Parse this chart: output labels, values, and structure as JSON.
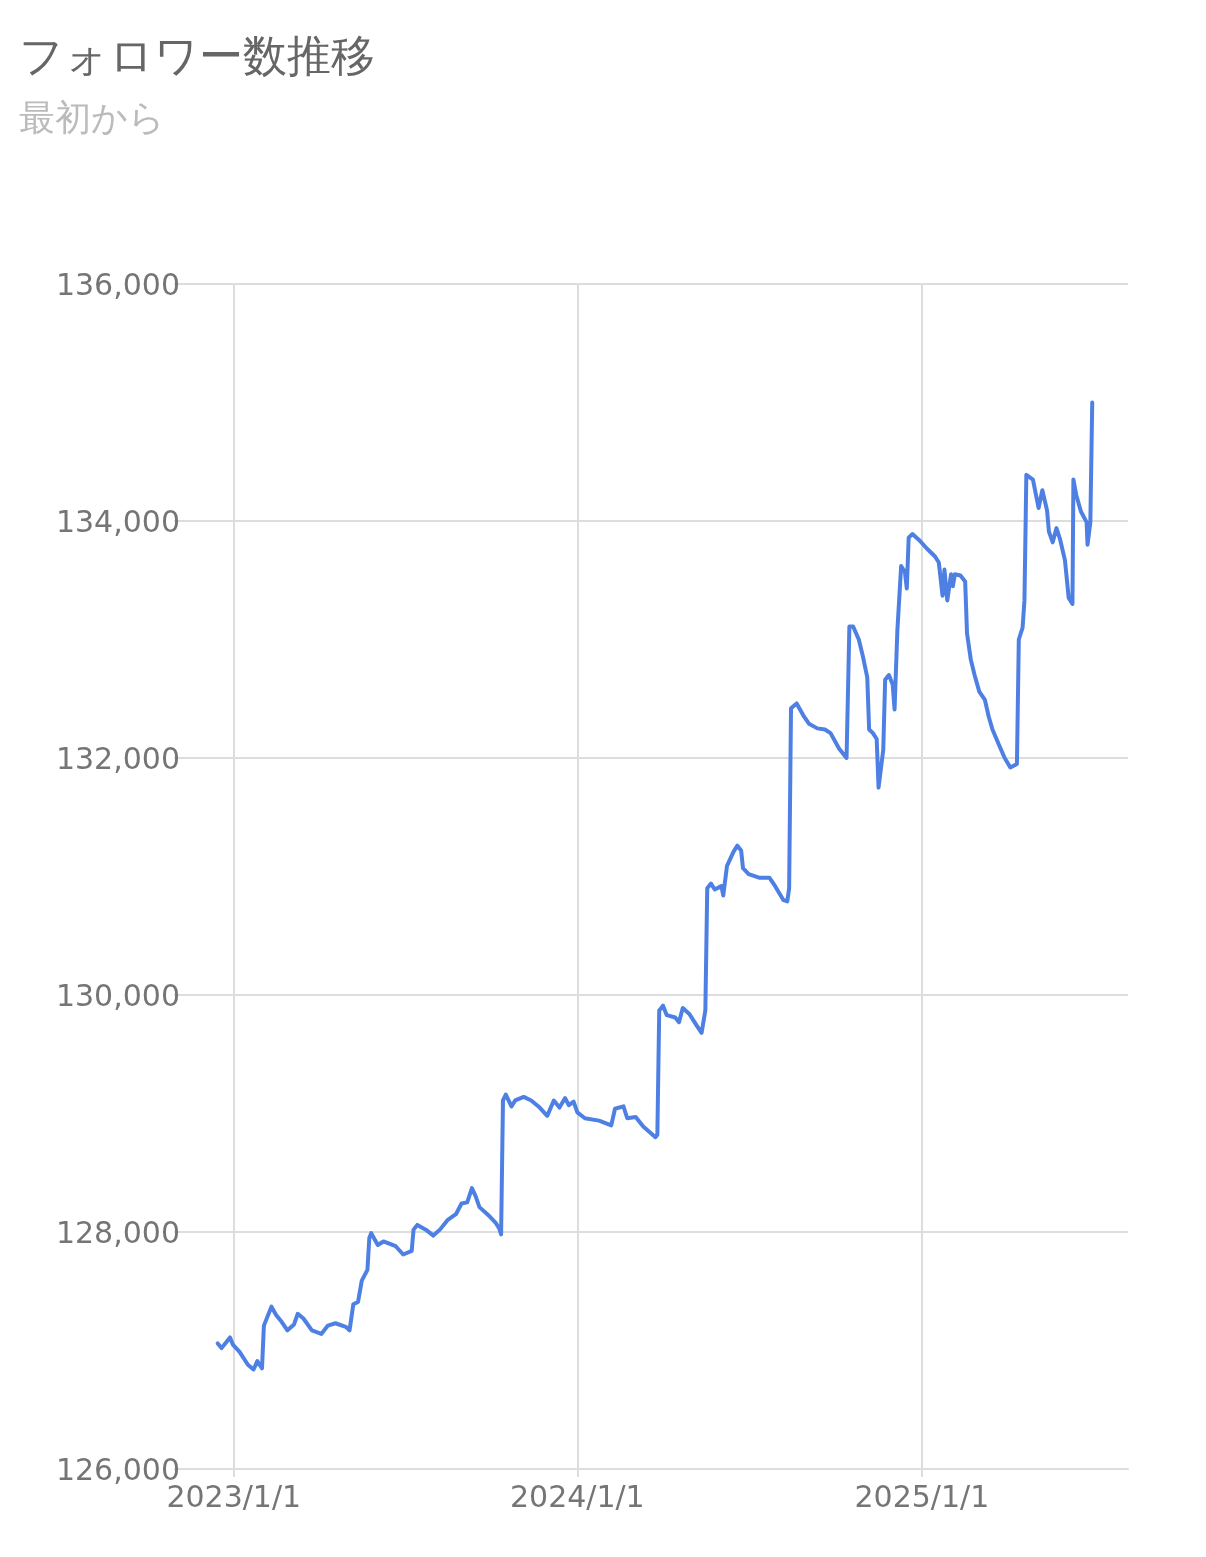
{
  "chart_data": {
    "type": "line",
    "title": "フォロワー数推移",
    "subtitle": "最初から",
    "x": [
      "2022-12-15",
      "2022-12-19",
      "2022-12-24",
      "2022-12-28",
      "2022-12-31",
      "2023-01-07",
      "2023-01-16",
      "2023-01-22",
      "2023-01-26",
      "2023-01-31",
      "2023-02-02",
      "2023-02-06",
      "2023-02-10",
      "2023-02-15",
      "2023-02-21",
      "2023-02-27",
      "2023-03-06",
      "2023-03-10",
      "2023-03-16",
      "2023-03-25",
      "2023-04-04",
      "2023-04-11",
      "2023-04-19",
      "2023-04-30",
      "2023-05-04",
      "2023-05-08",
      "2023-05-13",
      "2023-05-17",
      "2023-05-23",
      "2023-05-25",
      "2023-05-27",
      "2023-06-03",
      "2023-06-09",
      "2023-06-22",
      "2023-06-30",
      "2023-07-09",
      "2023-07-11",
      "2023-07-15",
      "2023-07-24",
      "2023-08-01",
      "2023-08-08",
      "2023-08-16",
      "2023-08-25",
      "2023-08-31",
      "2023-09-06",
      "2023-09-11",
      "2023-09-15",
      "2023-09-19",
      "2023-09-30",
      "2023-10-06",
      "2023-10-10",
      "2023-10-12",
      "2023-10-14",
      "2023-10-17",
      "2023-10-23",
      "2023-10-27",
      "2023-11-05",
      "2023-11-13",
      "2023-11-22",
      "2023-11-30",
      "2023-12-07",
      "2023-12-13",
      "2023-12-19",
      "2023-12-23",
      "2023-12-28",
      "2024-01-01",
      "2024-01-09",
      "2024-01-24",
      "2024-02-06",
      "2024-02-10",
      "2024-02-19",
      "2024-02-23",
      "2024-03-03",
      "2024-03-11",
      "2024-03-24",
      "2024-03-26",
      "2024-03-28",
      "2024-04-01",
      "2024-04-05",
      "2024-04-14",
      "2024-04-18",
      "2024-04-22",
      "2024-04-29",
      "2024-05-07",
      "2024-05-12",
      "2024-05-16",
      "2024-05-18",
      "2024-05-22",
      "2024-05-26",
      "2024-06-02",
      "2024-06-04",
      "2024-06-08",
      "2024-06-15",
      "2024-06-19",
      "2024-06-23",
      "2024-06-25",
      "2024-07-01",
      "2024-07-12",
      "2024-07-23",
      "2024-07-29",
      "2024-08-07",
      "2024-08-11",
      "2024-08-13",
      "2024-08-15",
      "2024-08-21",
      "2024-08-28",
      "2024-09-03",
      "2024-09-12",
      "2024-09-20",
      "2024-09-26",
      "2024-10-05",
      "2024-10-13",
      "2024-10-16",
      "2024-10-20",
      "2024-10-26",
      "2024-10-30",
      "2024-11-04",
      "2024-11-06",
      "2024-11-10",
      "2024-11-14",
      "2024-11-16",
      "2024-11-21",
      "2024-11-23",
      "2024-11-27",
      "2024-12-01",
      "2024-12-03",
      "2024-12-06",
      "2024-12-10",
      "2024-12-14",
      "2024-12-16",
      "2024-12-18",
      "2024-12-22",
      "2024-12-29",
      "2025-01-06",
      "2025-01-15",
      "2025-01-19",
      "2025-01-23",
      "2025-01-25",
      "2025-01-28",
      "2025-02-01",
      "2025-02-03",
      "2025-02-05",
      "2025-02-11",
      "2025-02-16",
      "2025-02-18",
      "2025-02-22",
      "2025-02-26",
      "2025-03-03",
      "2025-03-09",
      "2025-03-13",
      "2025-03-17",
      "2025-03-24",
      "2025-03-30",
      "2025-04-05",
      "2025-04-12",
      "2025-04-14",
      "2025-04-18",
      "2025-04-20",
      "2025-04-22",
      "2025-04-29",
      "2025-05-05",
      "2025-05-09",
      "2025-05-14",
      "2025-05-16",
      "2025-05-20",
      "2025-05-24",
      "2025-05-28",
      "2025-06-02",
      "2025-06-06",
      "2025-06-10",
      "2025-06-11",
      "2025-06-14",
      "2025-06-19",
      "2025-06-25",
      "2025-06-26",
      "2025-06-29",
      "2025-07-01"
    ],
    "series": [
      {
        "color": "#4e80e4",
        "values": [
          127060,
          127020,
          127070,
          127110,
          127050,
          126990,
          126880,
          126840,
          126910,
          126850,
          127210,
          127290,
          127370,
          127300,
          127240,
          127170,
          127220,
          127310,
          127270,
          127170,
          127140,
          127210,
          127230,
          127200,
          127170,
          127390,
          127410,
          127590,
          127680,
          127950,
          127990,
          127890,
          127920,
          127880,
          127810,
          127840,
          128020,
          128060,
          128020,
          127970,
          128020,
          128100,
          128150,
          128240,
          128250,
          128370,
          128300,
          128210,
          128130,
          128080,
          128030,
          127980,
          129110,
          129160,
          129060,
          129110,
          129140,
          129110,
          129050,
          128980,
          129110,
          129050,
          129130,
          129070,
          129100,
          129010,
          128960,
          128940,
          128900,
          129040,
          129060,
          128960,
          128970,
          128890,
          128800,
          128820,
          129870,
          129910,
          129830,
          129810,
          129770,
          129890,
          129840,
          129740,
          129680,
          129870,
          130900,
          130940,
          130890,
          130920,
          130840,
          131090,
          131210,
          131260,
          131220,
          131070,
          131020,
          130990,
          130990,
          130920,
          130800,
          130790,
          130900,
          132420,
          132460,
          132360,
          132290,
          132250,
          132240,
          132210,
          132080,
          132000,
          133110,
          133110,
          133000,
          132870,
          132680,
          132240,
          132210,
          132160,
          131750,
          132070,
          132660,
          132700,
          132620,
          132410,
          133080,
          133620,
          133570,
          133430,
          133860,
          133890,
          133840,
          133770,
          133700,
          133650,
          133370,
          133590,
          133330,
          133550,
          133450,
          133550,
          133540,
          133490,
          133050,
          132830,
          132700,
          132560,
          132490,
          132350,
          132240,
          132110,
          132000,
          131920,
          131950,
          133000,
          133100,
          133330,
          134390,
          134350,
          134110,
          134260,
          134090,
          133910,
          133820,
          133940,
          133840,
          133670,
          133350,
          133300,
          134350,
          134220,
          134080,
          133990,
          133800,
          133990,
          135000
        ]
      }
    ],
    "xlim": [
      "2022-11-07",
      "2025-08-08"
    ],
    "xticks": [
      {
        "value": "2023-01-01",
        "label": "2023/1/1"
      },
      {
        "value": "2024-01-01",
        "label": "2024/1/1"
      },
      {
        "value": "2025-01-01",
        "label": "2025/1/1"
      }
    ],
    "ylim": [
      126000,
      136000
    ],
    "yticks": [
      {
        "value": 126000,
        "label": "126,000"
      },
      {
        "value": 128000,
        "label": "128,000"
      },
      {
        "value": 130000,
        "label": "130,000"
      },
      {
        "value": 132000,
        "label": "132,000"
      },
      {
        "value": 134000,
        "label": "134,000"
      },
      {
        "value": 136000,
        "label": "136,000"
      }
    ],
    "grid": true,
    "marker": "none",
    "line_style": "solid"
  }
}
